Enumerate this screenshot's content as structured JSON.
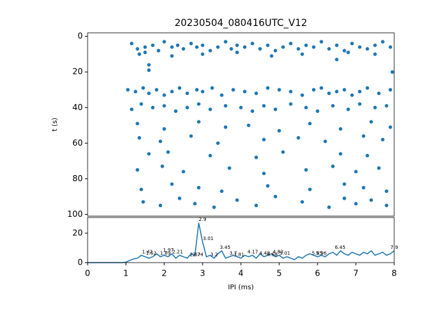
{
  "chart_data": [
    {
      "type": "scatter",
      "title": "20230504_080416UTC_V12",
      "y_label": "t (s)",
      "color": "#1f77b4",
      "xlim": [
        0,
        8
      ],
      "ylim": [
        101,
        -2
      ],
      "yticks": [
        0,
        20,
        40,
        60,
        80,
        100
      ],
      "x": [
        1.15,
        1.3,
        1.5,
        1.7,
        1.85,
        2.0,
        2.2,
        2.35,
        2.5,
        2.7,
        2.85,
        3.0,
        3.2,
        3.4,
        3.6,
        3.75,
        3.9,
        4.1,
        4.3,
        4.5,
        4.7,
        4.9,
        5.1,
        5.3,
        5.5,
        5.7,
        5.9,
        6.1,
        6.3,
        6.5,
        6.7,
        6.9,
        7.1,
        7.3,
        7.5,
        7.7,
        7.9,
        1.05,
        1.25,
        1.45,
        1.6,
        1.8,
        2.0,
        2.2,
        2.4,
        2.6,
        2.85,
        3.0,
        3.25,
        3.5,
        3.8,
        4.1,
        4.4,
        4.7,
        5.0,
        5.3,
        5.6,
        5.9,
        6.1,
        6.3,
        6.5,
        6.7,
        6.9,
        7.1,
        7.3,
        7.6,
        7.9,
        1.15,
        1.4,
        1.7,
        2.0,
        2.3,
        2.6,
        2.9,
        3.2,
        3.6,
        4.0,
        4.3,
        4.6,
        4.9,
        5.3,
        5.7,
        6.0,
        6.4,
        6.8,
        7.1,
        7.5,
        7.8,
        1.35,
        1.5,
        2.2,
        3.0,
        3.9,
        4.8,
        5.6,
        6.8,
        7.5,
        1.6,
        1.6,
        6.5,
        7.95,
        1.3,
        2.0,
        2.9,
        3.6,
        4.2,
        5.0,
        5.8,
        6.6,
        7.4,
        7.9,
        1.35,
        1.9,
        2.7,
        3.4,
        4.6,
        5.5,
        6.2,
        7.2,
        7.7,
        1.6,
        2.1,
        3.2,
        4.4,
        5.1,
        6.6,
        7.3,
        1.3,
        1.95,
        2.5,
        3.7,
        4.6,
        5.7,
        6.4,
        7.0,
        7.6,
        1.4,
        2.2,
        2.9,
        3.5,
        4.7,
        5.8,
        6.7,
        7.2,
        7.8,
        1.45,
        1.9,
        2.4,
        2.8,
        3.3,
        3.9,
        4.4,
        4.9,
        5.6,
        6.3,
        6.7,
        7.0,
        7.4,
        7.8
      ],
      "y": [
        4,
        7,
        6,
        5,
        8,
        3,
        6,
        5,
        7,
        4,
        6,
        5,
        8,
        6,
        3,
        7,
        5,
        6,
        4,
        7,
        5,
        8,
        6,
        4,
        7,
        5,
        6,
        3,
        7,
        5,
        8,
        4,
        6,
        7,
        5,
        3,
        6,
        30,
        31,
        29,
        32,
        30,
        33,
        31,
        29,
        32,
        30,
        31,
        29,
        33,
        30,
        31,
        32,
        29,
        30,
        31,
        33,
        30,
        29,
        32,
        31,
        30,
        33,
        31,
        29,
        32,
        30,
        41,
        38,
        40,
        39,
        42,
        40,
        38,
        41,
        39,
        40,
        42,
        39,
        41,
        38,
        40,
        42,
        39,
        41,
        38,
        40,
        39,
        10,
        9,
        11,
        10,
        9,
        11,
        10,
        9,
        10,
        16,
        19,
        13,
        20,
        49,
        52,
        48,
        51,
        50,
        53,
        49,
        52,
        48,
        51,
        57,
        59,
        56,
        60,
        58,
        57,
        59,
        56,
        58,
        66,
        65,
        67,
        68,
        65,
        66,
        67,
        75,
        73,
        76,
        74,
        77,
        75,
        73,
        76,
        74,
        86,
        83,
        85,
        87,
        84,
        86,
        83,
        85,
        87,
        93,
        95,
        91,
        94,
        96,
        92,
        95,
        90,
        93,
        96,
        91,
        94,
        92,
        95
      ]
    },
    {
      "type": "line",
      "x_label": "IPI (ms)",
      "color": "#1f77b4",
      "xlim": [
        0,
        8
      ],
      "ylim": [
        0,
        30.7
      ],
      "xticks": [
        0,
        1,
        2,
        3,
        4,
        5,
        6,
        7,
        8
      ],
      "yticks": [
        0,
        20
      ],
      "x": [
        0,
        0.1,
        0.2,
        0.3,
        0.4,
        0.5,
        0.6,
        0.7,
        0.8,
        0.9,
        1.0,
        1.1,
        1.2,
        1.3,
        1.4,
        1.5,
        1.6,
        1.7,
        1.8,
        1.9,
        2.0,
        2.1,
        2.2,
        2.3,
        2.4,
        2.5,
        2.6,
        2.7,
        2.8,
        2.9,
        3.0,
        3.1,
        3.2,
        3.3,
        3.4,
        3.5,
        3.6,
        3.7,
        3.8,
        3.9,
        4.0,
        4.1,
        4.2,
        4.3,
        4.4,
        4.5,
        4.6,
        4.7,
        4.8,
        4.9,
        5.0,
        5.1,
        5.2,
        5.3,
        5.4,
        5.5,
        5.6,
        5.7,
        5.8,
        5.9,
        6.0,
        6.1,
        6.2,
        6.3,
        6.4,
        6.5,
        6.6,
        6.7,
        6.8,
        6.9,
        7.0,
        7.1,
        7.2,
        7.3,
        7.4,
        7.5,
        7.6,
        7.7,
        7.8,
        7.9,
        8.0
      ],
      "values": [
        0,
        0,
        0,
        0,
        0,
        0,
        0,
        0,
        0,
        0,
        0.3,
        1.5,
        2.5,
        3,
        5,
        4,
        3,
        4,
        6,
        4,
        5,
        4,
        6,
        3,
        5,
        4,
        3,
        6,
        5,
        27,
        14,
        4,
        5,
        3,
        6,
        8,
        3,
        4,
        5,
        4,
        3,
        5,
        4,
        5,
        3,
        6,
        4,
        5,
        6,
        4,
        5,
        3,
        4,
        3,
        2,
        4,
        3,
        5,
        6,
        5,
        4,
        5,
        4,
        6,
        7,
        5,
        8,
        6,
        5,
        7,
        6,
        5,
        7,
        6,
        8,
        5,
        6,
        7,
        5,
        6,
        8
      ],
      "annotations": {
        "x": [
          1.42,
          1.52,
          1.89,
          1.97,
          2.21,
          2.67,
          2.74,
          2.9,
          3.01,
          3.2,
          3.45,
          3.7,
          3.81,
          4.17,
          4.48,
          4.68,
          4.83,
          5.01,
          5.85,
          5.96,
          6.45,
          7.9
        ],
        "y": [
          5,
          4,
          4,
          6,
          5,
          3,
          3,
          27,
          14,
          3,
          8,
          4,
          3,
          5,
          4,
          3,
          5,
          4,
          4,
          4,
          8,
          8
        ],
        "labels": [
          "1.42",
          "1.52",
          "1.89",
          "1.97",
          "2.21",
          "2.67",
          "2.74",
          "2.9",
          "3.01",
          "3.2",
          "3.45",
          "3.7",
          "3.81",
          "4.17",
          "4.48",
          "4.68",
          "4.83",
          "5.01",
          "5.85",
          "5.96",
          "6.45",
          "7.9"
        ]
      }
    }
  ]
}
